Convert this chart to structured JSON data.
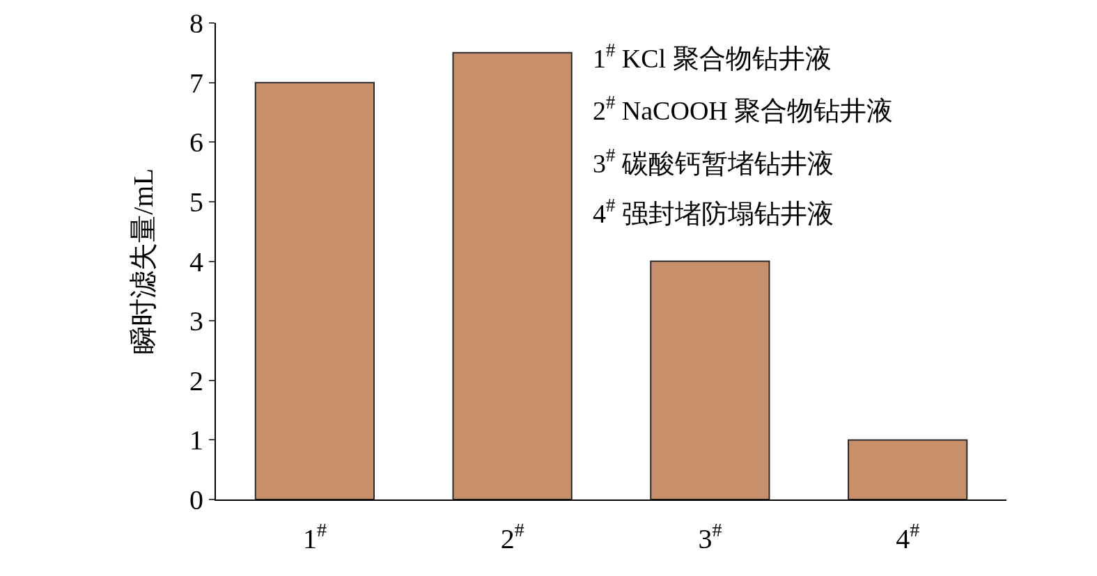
{
  "chart_data": {
    "type": "bar",
    "ylabel": "瞬时滤失量/mL",
    "categories": [
      "1$^{#}$",
      "2$^{#}$",
      "3$^{#}$",
      "4$^{#}$"
    ],
    "values": [
      7,
      7.5,
      4,
      1
    ],
    "color": "#c8906a",
    "ylim": [
      0,
      8
    ],
    "yticks": [
      0,
      1,
      2,
      3,
      4,
      5,
      6,
      7,
      8
    ],
    "legend": false,
    "annotations": [
      "1$^{#}$ KCl 聚合物钻井液",
      "2$^{#}$ NaCOOH 聚合物钻井液",
      "3$^{#}$ 碳酸钙暂堵钻井液",
      "4$^{#}$ 强封堵防塌钻井液"
    ]
  }
}
